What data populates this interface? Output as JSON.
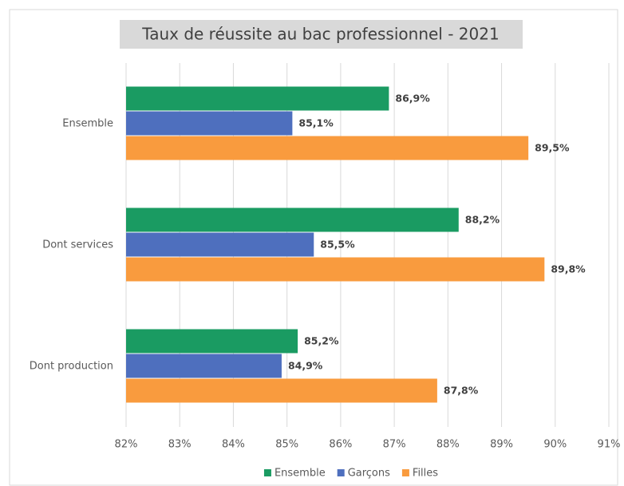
{
  "chart_data": {
    "type": "bar",
    "orientation": "horizontal",
    "title": "Taux de réussite au bac professionnel - 2021",
    "categories": [
      "Ensemble",
      "Dont services",
      "Dont production"
    ],
    "series": [
      {
        "name": "Ensemble",
        "color": "#1a9b62",
        "values": [
          86.9,
          88.2,
          85.2
        ],
        "value_labels": [
          "86,9%",
          "88,2%",
          "85,2%"
        ]
      },
      {
        "name": "Garçons",
        "color": "#4e6fbe",
        "values": [
          85.1,
          85.5,
          84.9
        ],
        "value_labels": [
          "85,1%",
          "85,5%",
          "84,9%"
        ]
      },
      {
        "name": "Filles",
        "color": "#f99b3e",
        "values": [
          89.5,
          89.8,
          87.8
        ],
        "value_labels": [
          "89,5%",
          "89,8%",
          "87,8%"
        ]
      }
    ],
    "xlim": [
      82,
      91
    ],
    "xticks": [
      {
        "value": 82,
        "label": "82%"
      },
      {
        "value": 83,
        "label": "83%"
      },
      {
        "value": 84,
        "label": "84%"
      },
      {
        "value": 85,
        "label": "85%"
      },
      {
        "value": 86,
        "label": "86%"
      },
      {
        "value": 87,
        "label": "87%"
      },
      {
        "value": 88,
        "label": "88%"
      },
      {
        "value": 89,
        "label": "89%"
      },
      {
        "value": 90,
        "label": "90%"
      },
      {
        "value": 91,
        "label": "91%"
      }
    ],
    "grid": true,
    "legend": "bottom"
  }
}
